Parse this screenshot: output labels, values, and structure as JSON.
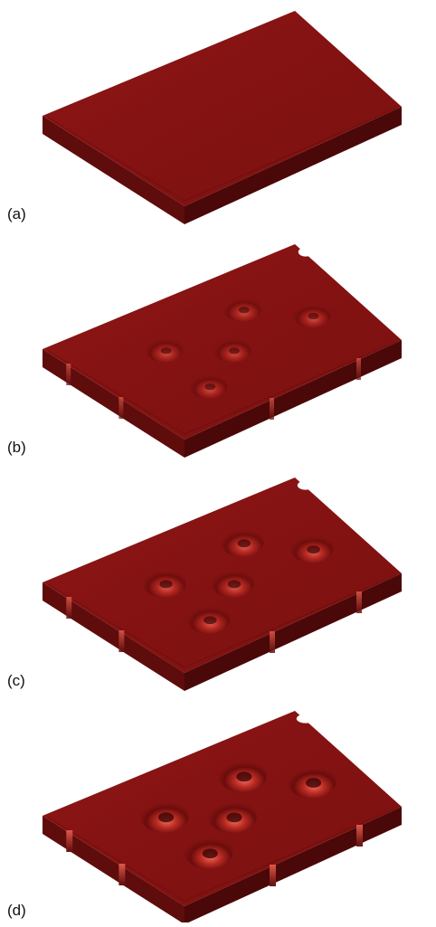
{
  "figure": {
    "panels": [
      {
        "label": "(a)",
        "dimples": 0,
        "edge_notches": 0
      },
      {
        "label": "(b)",
        "dimples": 5,
        "edge_notches": 4
      },
      {
        "label": "(c)",
        "dimples": 5,
        "edge_notches": 4
      },
      {
        "label": "(d)",
        "dimples": 5,
        "edge_notches": 4
      }
    ],
    "colors": {
      "top": "#8a1414",
      "front": "#5e0c0c",
      "side": "#4a0808",
      "highlight": "#e0584a",
      "shadow": "#3a0505"
    }
  }
}
